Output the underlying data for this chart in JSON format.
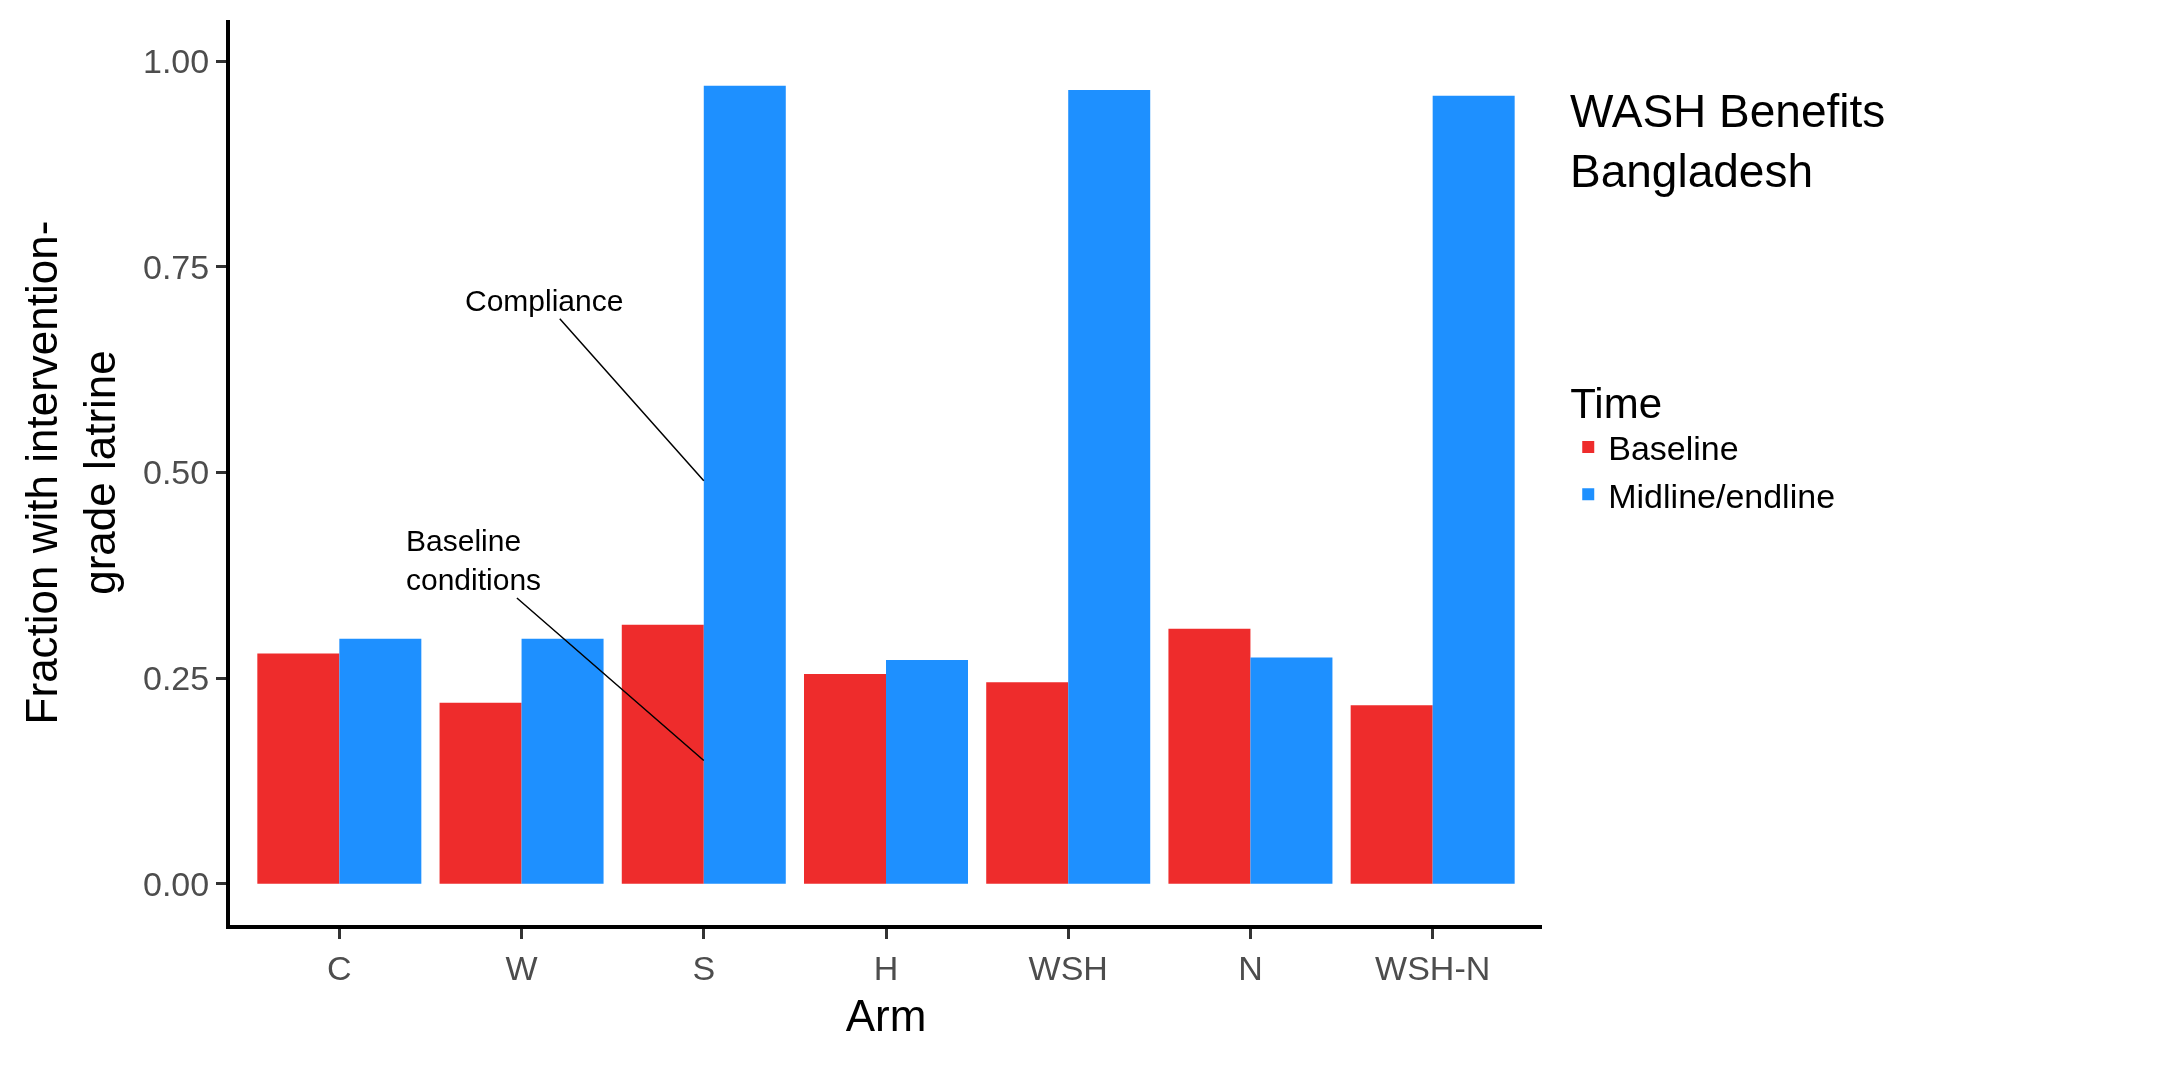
{
  "chart_data": {
    "type": "bar",
    "title": "WASH Benefits\nBangladesh",
    "xlabel": "Arm",
    "ylabel": "Fraction with intervention-\ngrade latrine",
    "legend_title": "Time",
    "categories": [
      "C",
      "W",
      "S",
      "H",
      "WSH",
      "N",
      "WSH-N"
    ],
    "series": [
      {
        "name": "Baseline",
        "color": "#ee2c2c",
        "values": [
          0.28,
          0.22,
          0.315,
          0.255,
          0.245,
          0.31,
          0.217
        ]
      },
      {
        "name": "Midline/endline",
        "color": "#1e90ff",
        "values": [
          0.298,
          0.298,
          0.97,
          0.272,
          0.965,
          0.275,
          0.958
        ]
      }
    ],
    "ylim": [
      -0.05,
      1.05
    ],
    "yticks": [
      {
        "value": 0,
        "label": "0.00"
      },
      {
        "value": 0.25,
        "label": "0.25"
      },
      {
        "value": 0.5,
        "label": "0.50"
      },
      {
        "value": 0.75,
        "label": "0.75"
      },
      {
        "value": 1,
        "label": "1.00"
      }
    ],
    "annotations": [
      {
        "text": "Compliance",
        "x": "S",
        "y": 0.49
      },
      {
        "text": "Baseline\nconditions",
        "x": "S",
        "y": 0.15
      }
    ],
    "legend": "right"
  }
}
